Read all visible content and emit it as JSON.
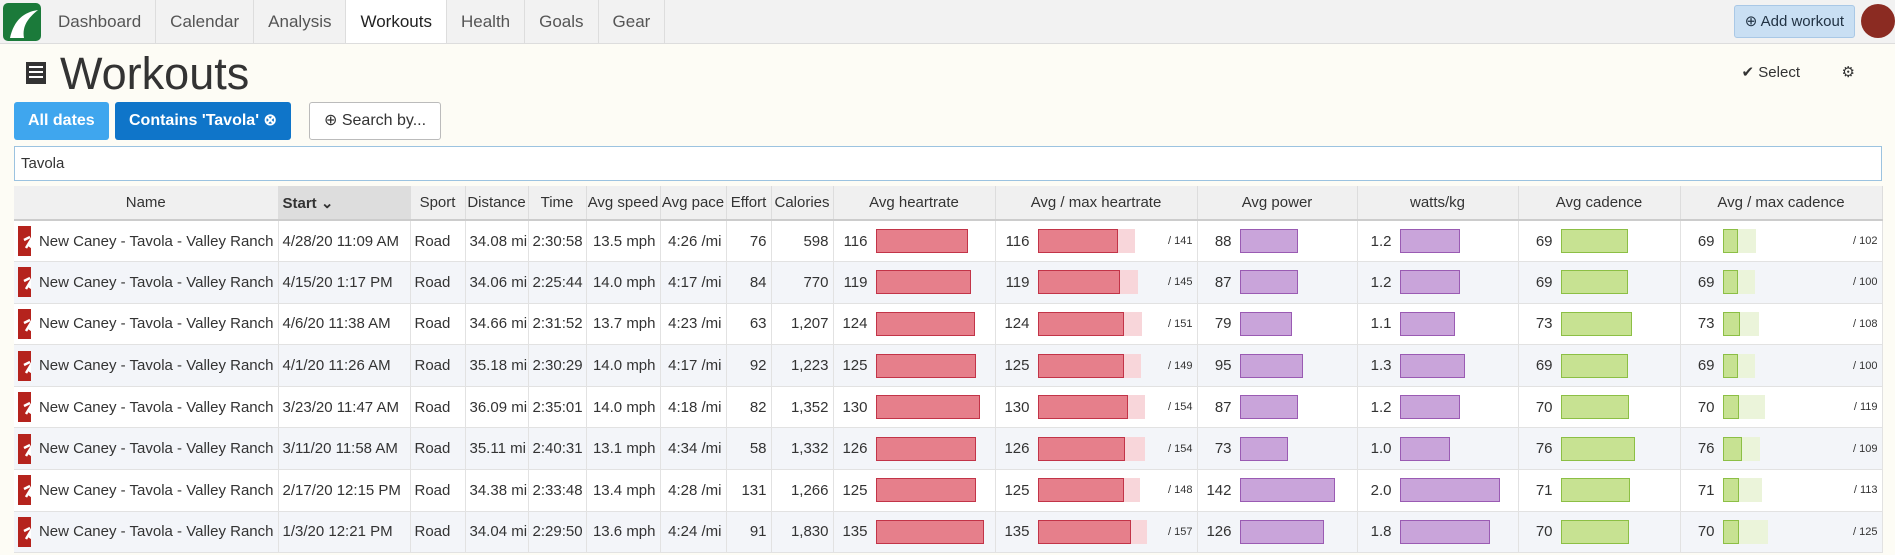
{
  "nav": {
    "tabs": [
      "Dashboard",
      "Calendar",
      "Analysis",
      "Workouts",
      "Health",
      "Goals",
      "Gear"
    ],
    "active": 3,
    "add_workout": "Add workout"
  },
  "header": {
    "title": "Workouts",
    "select": "Select"
  },
  "filters": {
    "all_dates": "All dates",
    "contains": "Contains 'Tavola'",
    "search_by": "Search by..."
  },
  "search": "Tavola",
  "table": {
    "columns": [
      "Name",
      "Start",
      "Sport",
      "Distance",
      "Time",
      "Avg speed",
      "Avg pace",
      "Effort",
      "Calories",
      "Avg heartrate",
      "Avg / max heartrate",
      "Avg power",
      "watts/kg",
      "Avg cadence",
      "Avg / max cadence"
    ],
    "sorted": 1,
    "rows": [
      [
        "New Caney - Tavola - Valley Ranch",
        "4/28/20 11:09 AM",
        "Road",
        "34.08 mi",
        "2:30:58",
        "13.5 mph",
        "4:26 /mi",
        76,
        598,
        116,
        {
          "value": 141,
          "label": "/ 141"
        },
        88,
        1.2,
        69,
        {
          "value": 102,
          "label": "/ 102"
        }
      ],
      [
        "New Caney - Tavola - Valley Ranch",
        "4/15/20 1:17 PM",
        "Road",
        "34.06 mi",
        "2:25:44",
        "14.0 mph",
        "4:17 /mi",
        84,
        770,
        119,
        {
          "value": 145,
          "label": "/ 145"
        },
        87,
        1.2,
        69,
        {
          "value": 100,
          "label": "/ 100"
        }
      ],
      [
        "New Caney - Tavola - Valley Ranch",
        "4/6/20 11:38 AM",
        "Road",
        "34.66 mi",
        "2:31:52",
        "13.7 mph",
        "4:23 /mi",
        63,
        "1,207",
        124,
        {
          "value": 151,
          "label": "/ 151"
        },
        79,
        1.1,
        73,
        {
          "value": 108,
          "label": "/ 108"
        }
      ],
      [
        "New Caney - Tavola - Valley Ranch",
        "4/1/20 11:26 AM",
        "Road",
        "35.18 mi",
        "2:30:29",
        "14.0 mph",
        "4:17 /mi",
        92,
        "1,223",
        125,
        {
          "value": 149,
          "label": "/ 149"
        },
        95,
        1.3,
        69,
        {
          "value": 100,
          "label": "/ 100"
        }
      ],
      [
        "New Caney - Tavola - Valley Ranch",
        "3/23/20 11:47 AM",
        "Road",
        "36.09 mi",
        "2:35:01",
        "14.0 mph",
        "4:18 /mi",
        82,
        "1,352",
        130,
        {
          "value": 154,
          "label": "/ 154"
        },
        87,
        1.2,
        70,
        {
          "value": 119,
          "label": "/ 119"
        }
      ],
      [
        "New Caney - Tavola - Valley Ranch",
        "3/11/20 11:58 AM",
        "Road",
        "35.11 mi",
        "2:40:31",
        "13.1 mph",
        "4:34 /mi",
        58,
        "1,332",
        126,
        {
          "value": 154,
          "label": "/ 154"
        },
        73,
        {
          "value": 1.0,
          "label": "1.0"
        },
        76,
        {
          "value": 109,
          "label": "/ 109"
        }
      ],
      [
        "New Caney - Tavola - Valley Ranch",
        "2/17/20 12:15 PM",
        "Road",
        "34.38 mi",
        "2:33:48",
        "13.4 mph",
        "4:28 /mi",
        131,
        "1,266",
        125,
        {
          "value": 148,
          "label": "/ 148"
        },
        142,
        {
          "value": 2.0,
          "label": "2.0"
        },
        71,
        {
          "value": 113,
          "label": "/ 113"
        }
      ],
      [
        "New Caney - Tavola - Valley Ranch",
        "1/3/20 12:21 PM",
        "Road",
        "34.04 mi",
        "2:29:50",
        "13.6 mph",
        "4:24 /mi",
        91,
        "1,830",
        135,
        {
          "value": 157,
          "label": "/ 157"
        },
        126,
        1.8,
        70,
        {
          "value": 125,
          "label": "/ 125"
        }
      ]
    ]
  }
}
